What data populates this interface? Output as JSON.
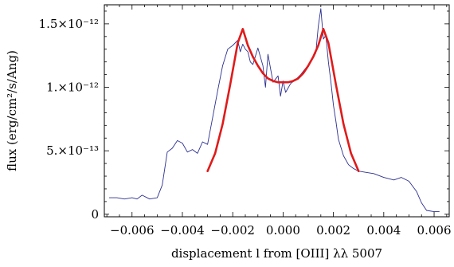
{
  "chart_data": {
    "type": "line",
    "title": "",
    "xlabel": "displacement l from [OIII] λλ 5007",
    "ylabel": "flux (erg/cm²/s/Ang)",
    "xlim": [
      -0.0071,
      0.0066
    ],
    "ylim": [
      -2e-14,
      1.65e-12
    ],
    "grid": false,
    "x_ticks": [
      -0.006,
      -0.004,
      -0.002,
      0.0,
      0.002,
      0.004,
      0.006
    ],
    "x_tick_labels": [
      "−0.006",
      "−0.004",
      "−0.002",
      "0.000",
      "0.002",
      "0.004",
      "0.006"
    ],
    "y_ticks": [
      0,
      5e-13,
      1e-12,
      1.5e-12
    ],
    "y_tick_labels": [
      "0",
      "5.×10⁻¹³",
      "1.×10⁻¹²",
      "1.5×10⁻¹²"
    ],
    "series": [
      {
        "style": "observed-spectrum",
        "color": "#2b2f8f",
        "x": [
          -0.0069,
          -0.0066,
          -0.0063,
          -0.006,
          -0.0058,
          -0.0056,
          -0.0053,
          -0.005,
          -0.0048,
          -0.0046,
          -0.0044,
          -0.0042,
          -0.004,
          -0.0038,
          -0.0036,
          -0.0034,
          -0.0032,
          -0.003,
          -0.0028,
          -0.0026,
          -0.0024,
          -0.0022,
          -0.002,
          -0.0018,
          -0.0017,
          -0.0016,
          -0.0015,
          -0.0014,
          -0.0013,
          -0.0012,
          -0.001,
          -0.0008,
          -0.0007,
          -0.0006,
          -0.0004,
          -0.0002,
          -0.0001,
          0.0,
          0.0001,
          0.0003,
          0.0005,
          0.0007,
          0.0009,
          0.0011,
          0.0013,
          0.0014,
          0.0015,
          0.0016,
          0.0017,
          0.0018,
          0.0019,
          0.002,
          0.0021,
          0.0022,
          0.0024,
          0.0026,
          0.0028,
          0.003,
          0.0033,
          0.0036,
          0.004,
          0.0044,
          0.0047,
          0.005,
          0.0053,
          0.0055,
          0.0057,
          0.006,
          0.0062
        ],
        "values": [
          1.3e-13,
          1.3e-13,
          1.2e-13,
          1.3e-13,
          1.2e-13,
          1.5e-13,
          1.2e-13,
          1.3e-13,
          2.3e-13,
          4.9e-13,
          5.2e-13,
          5.8e-13,
          5.6e-13,
          4.9e-13,
          5.1e-13,
          4.8e-13,
          5.7e-13,
          5.5e-13,
          7.6e-13,
          9.7e-13,
          1.17e-12,
          1.3e-12,
          1.33e-12,
          1.37e-12,
          1.28e-12,
          1.34e-12,
          1.3e-12,
          1.28e-12,
          1.2e-12,
          1.18e-12,
          1.31e-12,
          1.17e-12,
          1e-12,
          1.26e-12,
          1.04e-12,
          1.09e-12,
          9.3e-13,
          1.05e-12,
          9.6e-13,
          1.03e-12,
          1.06e-12,
          1.1e-12,
          1.15e-12,
          1.2e-12,
          1.27e-12,
          1.48e-12,
          1.62e-12,
          1.38e-12,
          1.41e-12,
          1.2e-12,
          1.04e-12,
          8.6e-13,
          7.3e-13,
          5.9e-13,
          4.6e-13,
          3.9e-13,
          3.6e-13,
          3.4e-13,
          3.3e-13,
          3.2e-13,
          2.9e-13,
          2.7e-13,
          2.9e-13,
          2.6e-13,
          1.8e-13,
          9e-14,
          3e-14,
          2e-14,
          2e-14
        ]
      },
      {
        "style": "model-fit",
        "color": "#e01a1a",
        "x": [
          -0.003,
          -0.0027,
          -0.0024,
          -0.0021,
          -0.0018,
          -0.0016,
          -0.0014,
          -0.0012,
          -0.001,
          -0.0008,
          -0.0006,
          -0.0004,
          -0.0002,
          0.0,
          0.0002,
          0.0004,
          0.0006,
          0.0008,
          0.001,
          0.0012,
          0.0014,
          0.0016,
          0.0018,
          0.0021,
          0.0024,
          0.0027,
          0.003
        ],
        "values": [
          3.4e-13,
          4.8e-13,
          7.1e-13,
          1.02e-12,
          1.35e-12,
          1.46e-12,
          1.33e-12,
          1.24e-12,
          1.17e-12,
          1.11e-12,
          1.07e-12,
          1.05e-12,
          1.04e-12,
          1.04e-12,
          1.04e-12,
          1.05e-12,
          1.07e-12,
          1.11e-12,
          1.17e-12,
          1.24e-12,
          1.33e-12,
          1.46e-12,
          1.35e-12,
          1.02e-12,
          7.1e-13,
          4.8e-13,
          3.4e-13
        ]
      }
    ]
  }
}
